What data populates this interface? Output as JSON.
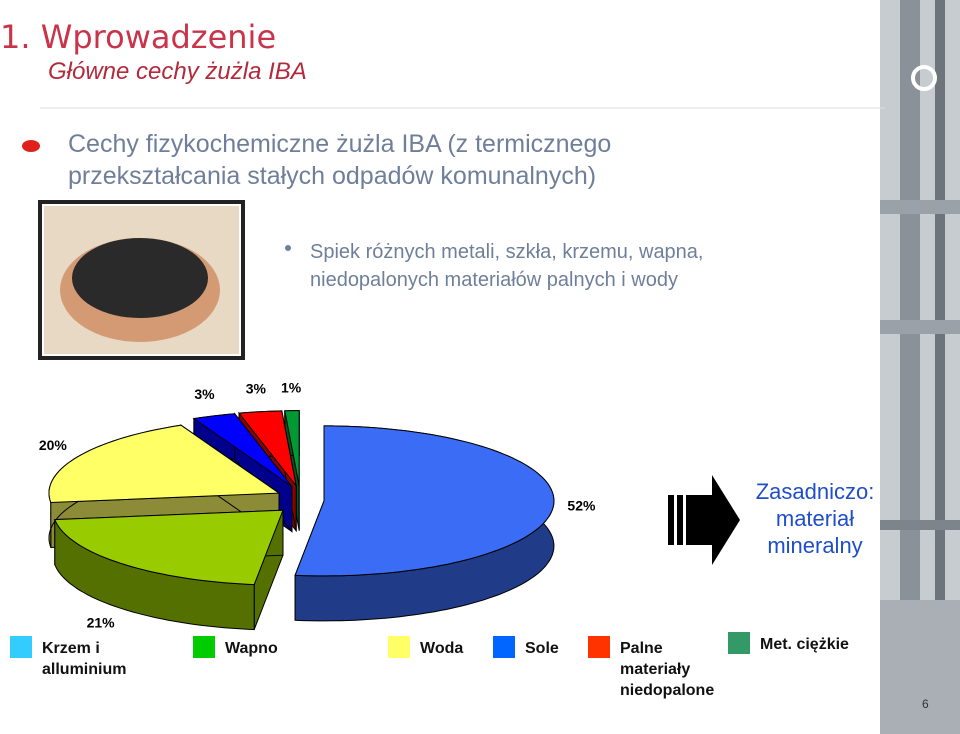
{
  "slide": {
    "title": "1. Wprowadzenie",
    "subtitle": "Główne cechy żużla IBA",
    "bullet": "Cechy fizykochemiczne żużla IBA (z termicznego przekształcania stałych odpadów komunalnych)",
    "sub_bullet": "Spiek różnych metali, szkła, krzemu, wapna, niedopalonych materiałów palnych i wody",
    "conclusion": "Zasadniczo: materiał mineralny",
    "page_number": "6"
  },
  "chart_data": {
    "type": "pie",
    "values": [
      52,
      21,
      20,
      3,
      3,
      1
    ],
    "value_labels": [
      "52%",
      "21%",
      "20%",
      "3%",
      "3%",
      "1%"
    ],
    "colors": [
      "#3b6cf5",
      "#99cc00",
      "#ffff66",
      "#0000ff",
      "#ff0000",
      "#009933"
    ],
    "legend": [
      {
        "name": "Krzem i alluminium",
        "color": "#33ccff"
      },
      {
        "name": "Wapno",
        "color": "#00cc00"
      },
      {
        "name": "Woda",
        "color": "#ffff66"
      },
      {
        "name": "Sole",
        "color": "#0066ff"
      },
      {
        "name": "Palne materiały niedopalone",
        "color": "#ff3300"
      },
      {
        "name": "Met. ciężkie",
        "color": "#339966"
      }
    ]
  }
}
